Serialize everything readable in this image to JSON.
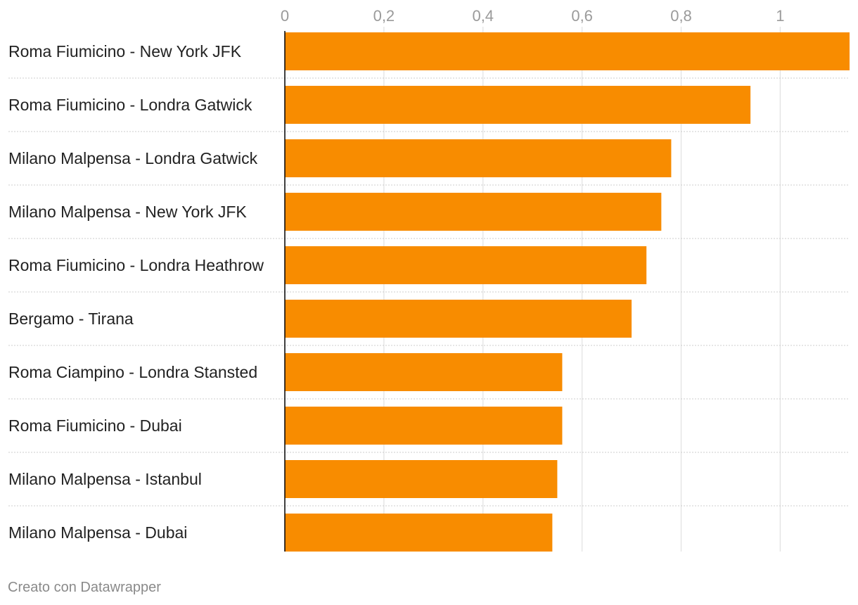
{
  "chart_data": {
    "type": "bar",
    "orientation": "horizontal",
    "title": "",
    "xlabel": "",
    "ylabel": "",
    "categories": [
      "Roma Fiumicino - New York JFK",
      "Roma Fiumicino - Londra Gatwick",
      "Milano Malpensa - Londra Gatwick",
      "Milano Malpensa - New York JFK",
      "Roma Fiumicino - Londra Heathrow",
      "Bergamo - Tirana",
      "Roma Ciampino - Londra Stansted",
      "Roma Fiumicino - Dubai",
      "Milano Malpensa - Istanbul",
      "Milano Malpensa - Dubai"
    ],
    "values": [
      1.14,
      0.94,
      0.78,
      0.76,
      0.73,
      0.7,
      0.56,
      0.56,
      0.55,
      0.54
    ],
    "xlim": [
      0,
      1.14
    ],
    "ticks": [
      0,
      0.2,
      0.4,
      0.6,
      0.8,
      1
    ],
    "tick_labels": [
      "0",
      "0,2",
      "0,4",
      "0,6",
      "0,8",
      "1"
    ],
    "grid": true,
    "legend": "none",
    "colors": {
      "bar": "#f88c00",
      "grid": "#e1e1e1",
      "axis": "#000000",
      "separator": "#cccccc"
    }
  },
  "footer": {
    "credit": "Creato con Datawrapper"
  }
}
